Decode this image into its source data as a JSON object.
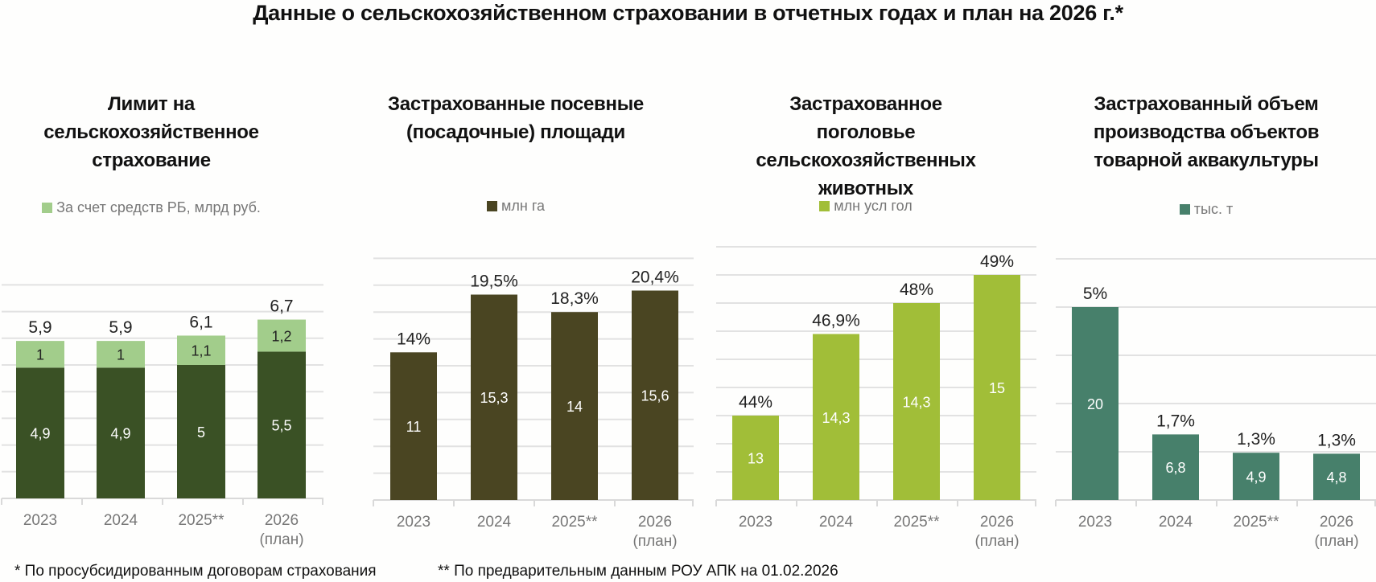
{
  "title": "Данные о сельскохозяйственном страховании в отчетных годах и план на 2026 г.*",
  "footnotes": [
    "* По просубсидированным договорам страхования",
    "** По предварительным данным РОУ АПК на 01.02.2026"
  ],
  "chart_data": [
    {
      "type": "bar",
      "stacked": true,
      "title": "Лимит на сельскохозяйственное страхование",
      "title_lines": [
        "Лимит на",
        "сельскохозяйственное",
        "страхование"
      ],
      "categories": [
        "2023",
        "2024",
        "2025**",
        "2026 (план)"
      ],
      "category_lines": [
        [
          "2023"
        ],
        [
          "2024"
        ],
        [
          "2025**"
        ],
        [
          "2026",
          "(план)"
        ]
      ],
      "legend": "За счет средств РБ, млрд руб.",
      "series": [
        {
          "name": "base",
          "color": "#3a5125",
          "label_color": "#ffffff",
          "values": [
            4.9,
            4.9,
            5,
            5.5
          ],
          "labels": [
            "4,9",
            "4,9",
            "5",
            "5,5"
          ]
        },
        {
          "name": "За счет средств РБ, млрд руб.",
          "color": "#a2cd8b",
          "label_color": "#222222",
          "values": [
            1,
            1,
            1.1,
            1.2
          ],
          "labels": [
            "1",
            "1",
            "1,1",
            "1,2"
          ]
        }
      ],
      "top_labels": [
        "5,9",
        "5,9",
        "6,1",
        "6,7"
      ],
      "ylim": [
        0,
        8
      ],
      "grid_step": 1,
      "grid": true
    },
    {
      "type": "bar",
      "title": "Застрахованные посевные (посадочные) площади",
      "title_lines": [
        "Застрахованные посевные",
        "(посадочные) площади"
      ],
      "categories": [
        "2023",
        "2024",
        "2025**",
        "2026 (план)"
      ],
      "category_lines": [
        [
          "2023"
        ],
        [
          "2024"
        ],
        [
          "2025**"
        ],
        [
          "2026",
          "(план)"
        ]
      ],
      "legend": "млн га",
      "series": [
        {
          "name": "млн га",
          "color": "#4a4522",
          "label_color": "#ffffff",
          "values": [
            11,
            15.3,
            14,
            15.6
          ],
          "labels": [
            "11",
            "15,3",
            "14",
            "15,6"
          ]
        }
      ],
      "top_labels": [
        "14%",
        "19,5%",
        "18,3%",
        "20,4%"
      ],
      "ylim": [
        0,
        18
      ],
      "grid_step": 2,
      "grid": true
    },
    {
      "type": "bar",
      "title": "Застрахованное поголовье сельскохозяйственных животных",
      "title_lines": [
        "Застрахованное",
        "поголовье",
        "сельскохозяйственных",
        "животных"
      ],
      "categories": [
        "2023",
        "2024",
        "2025**",
        "2026 (план)"
      ],
      "category_lines": [
        [
          "2023"
        ],
        [
          "2024"
        ],
        [
          "2025**"
        ],
        [
          "2026",
          "(план)"
        ]
      ],
      "legend": "млн усл гол",
      "series": [
        {
          "name": "млн усл гол",
          "color": "#a1be38",
          "label_color": "#ffffff",
          "values": [
            13,
            14.3,
            14.3,
            15
          ],
          "labels": [
            "13",
            "14,3",
            "14,3",
            "15"
          ]
        }
      ],
      "top_labels": [
        "44%",
        "46,9%",
        "48%",
        "49%"
      ],
      "plotted_share_percent": [
        44,
        46.9,
        48,
        49
      ],
      "ylim": [
        41,
        50
      ],
      "grid_step": 1,
      "grid": true
    },
    {
      "type": "bar",
      "title": "Застрахованный объем производства объектов товарной аквакультуры",
      "title_lines": [
        "Застрахованный объем",
        "производства объектов",
        "товарной аквакультуры"
      ],
      "categories": [
        "2023",
        "2024",
        "2025**",
        "2026 (план)"
      ],
      "category_lines": [
        [
          "2023"
        ],
        [
          "2024"
        ],
        [
          "2025**"
        ],
        [
          "2026",
          "(план)"
        ]
      ],
      "legend": "тыс. т",
      "series": [
        {
          "name": "тыс. т",
          "color": "#47806b",
          "label_color": "#ffffff",
          "values": [
            20,
            6.8,
            4.9,
            4.8
          ],
          "labels": [
            "20",
            "6,8",
            "4,9",
            "4,8"
          ]
        }
      ],
      "top_labels": [
        "5%",
        "1,7%",
        "1,3%",
        "1,3%"
      ],
      "ylim": [
        0,
        25
      ],
      "grid_step": 5,
      "grid": true
    }
  ]
}
